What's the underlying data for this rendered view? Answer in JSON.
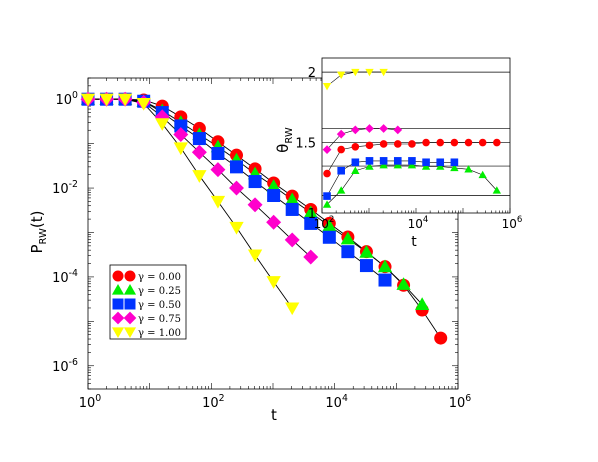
{
  "chart_data": [
    {
      "type": "scatter",
      "xlabel": "t",
      "ylabel": "P",
      "ylabel_sub": "RW",
      "ylabel_tail": "(t)",
      "xscale": "log",
      "yscale": "log",
      "xlim": [
        1,
        1000000
      ],
      "ylim": [
        3e-07,
        3
      ],
      "x_ticks": [
        {
          "value": 1,
          "base": "10",
          "exp": "0"
        },
        {
          "value": 100,
          "base": "10",
          "exp": "2"
        },
        {
          "value": 10000,
          "base": "10",
          "exp": "4"
        },
        {
          "value": 1000000,
          "base": "10",
          "exp": "6"
        }
      ],
      "y_ticks": [
        {
          "value": 1,
          "base": "10",
          "exp": "0"
        },
        {
          "value": 0.01,
          "base": "10",
          "exp": "-2"
        },
        {
          "value": 0.0001,
          "base": "10",
          "exp": "-4"
        },
        {
          "value": 1e-06,
          "base": "10",
          "exp": "-6"
        }
      ],
      "legend_position": "lower-left",
      "series": [
        {
          "name": "γ = 0.00",
          "color": "#ff0000",
          "marker": "circle",
          "x": [
            1,
            2,
            4,
            8,
            16,
            32,
            64,
            128,
            256,
            512,
            1024,
            2048,
            4096,
            8192,
            16384,
            32768,
            65536,
            131072,
            262144,
            524288
          ],
          "y": [
            1,
            1,
            1,
            0.96,
            0.7,
            0.4,
            0.22,
            0.11,
            0.055,
            0.027,
            0.013,
            0.0066,
            0.0033,
            0.0016,
            0.00079,
            0.00037,
            0.00017,
            6.5e-05,
            1.8e-05,
            4.2e-06
          ]
        },
        {
          "name": "γ = 0.25",
          "color": "#00ee00",
          "marker": "triangle-up",
          "x": [
            1,
            2,
            4,
            8,
            16,
            32,
            64,
            128,
            256,
            512,
            1024,
            2048,
            4096,
            8192,
            16384,
            32768,
            65536,
            131072,
            262144
          ],
          "y": [
            1,
            1,
            1,
            0.9,
            0.55,
            0.3,
            0.16,
            0.085,
            0.043,
            0.021,
            0.011,
            0.0055,
            0.0028,
            0.0014,
            0.00072,
            0.00036,
            0.00017,
            6.8e-05,
            2.4e-05
          ]
        },
        {
          "name": "γ = 0.50",
          "color": "#0033ff",
          "marker": "square",
          "x": [
            1,
            2,
            4,
            8,
            16,
            32,
            64,
            128,
            256,
            512,
            1024,
            2048,
            4096,
            8192,
            16384,
            32768,
            65536
          ],
          "y": [
            1,
            1,
            1,
            0.9,
            0.5,
            0.25,
            0.13,
            0.06,
            0.03,
            0.014,
            0.0068,
            0.0033,
            0.0016,
            0.00078,
            0.00037,
            0.00018,
            8.5e-05
          ]
        },
        {
          "name": "γ = 0.75",
          "color": "#ff00cc",
          "marker": "diamond",
          "x": [
            1,
            2,
            4,
            8,
            16,
            32,
            64,
            128,
            256,
            512,
            1024,
            2048,
            4096
          ],
          "y": [
            1,
            1,
            1,
            0.85,
            0.4,
            0.16,
            0.064,
            0.026,
            0.01,
            0.0042,
            0.0017,
            0.00068,
            0.00028
          ]
        },
        {
          "name": "γ = 1.00",
          "color": "#ffff00",
          "marker": "triangle-down",
          "x": [
            1,
            2,
            4,
            8,
            16,
            32,
            64,
            128,
            256,
            512,
            1024,
            2048
          ],
          "y": [
            1,
            1,
            1,
            0.8,
            0.28,
            0.08,
            0.019,
            0.005,
            0.0013,
            0.00031,
            7.8e-05,
            2e-05
          ]
        }
      ]
    },
    {
      "type": "scatter",
      "role": "inset",
      "xlabel": "t",
      "ylabel": "θ",
      "ylabel_sub": "RW",
      "xscale": "log",
      "xlim": [
        100,
        1000000
      ],
      "ylim": [
        1,
        2.1
      ],
      "x_ticks": [
        {
          "value": 100,
          "base": "10",
          "exp": "2"
        },
        {
          "value": 10000,
          "base": "10",
          "exp": "4"
        },
        {
          "value": 1000000,
          "base": "10",
          "exp": "6"
        }
      ],
      "y_ticks": [
        "1",
        "1.5",
        "2"
      ],
      "reference_lines": [
        1.125,
        1.333,
        1.5,
        1.6,
        2.0
      ],
      "series": [
        {
          "name": "γ = 0.00",
          "color": "#ff0000",
          "marker": "circle",
          "x": [
            128,
            256,
            512,
            1024,
            2048,
            4096,
            8192,
            16384,
            32768,
            65536,
            131072,
            262144,
            524288
          ],
          "y": [
            1.28,
            1.45,
            1.47,
            1.48,
            1.49,
            1.49,
            1.49,
            1.5,
            1.5,
            1.5,
            1.5,
            1.5,
            1.5
          ]
        },
        {
          "name": "γ = 0.25",
          "color": "#00ee00",
          "marker": "triangle-up",
          "x": [
            128,
            256,
            512,
            1024,
            2048,
            4096,
            8192,
            16384,
            32768,
            65536,
            131072,
            262144,
            524288
          ],
          "y": [
            1.06,
            1.16,
            1.3,
            1.33,
            1.34,
            1.34,
            1.34,
            1.33,
            1.33,
            1.32,
            1.31,
            1.27,
            1.16
          ]
        },
        {
          "name": "γ = 0.50",
          "color": "#0033ff",
          "marker": "square",
          "x": [
            128,
            256,
            512,
            1024,
            2048,
            4096,
            8192,
            16384,
            32768,
            65536
          ],
          "y": [
            1.12,
            1.3,
            1.36,
            1.37,
            1.37,
            1.37,
            1.37,
            1.36,
            1.36,
            1.36
          ]
        },
        {
          "name": "γ = 0.75",
          "color": "#ff00cc",
          "marker": "diamond",
          "x": [
            128,
            256,
            512,
            1024,
            2048,
            4096
          ],
          "y": [
            1.45,
            1.56,
            1.59,
            1.6,
            1.6,
            1.59
          ]
        },
        {
          "name": "γ = 1.00",
          "color": "#ffff00",
          "marker": "triangle-down",
          "x": [
            128,
            256,
            512,
            1024,
            2048
          ],
          "y": [
            1.9,
            1.98,
            2.0,
            2.0,
            2.0
          ]
        }
      ]
    }
  ]
}
